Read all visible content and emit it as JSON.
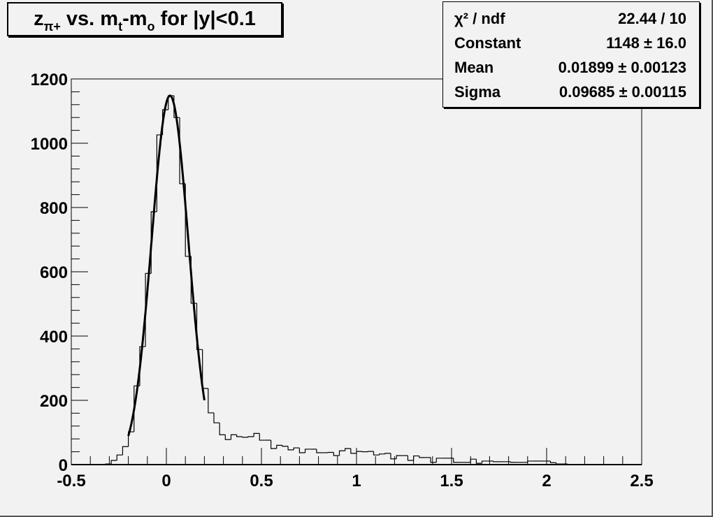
{
  "title": {
    "base1": "z",
    "sub1": "π+",
    "base2": " vs. m",
    "sub2": "t",
    "base3": "-m",
    "sub3": "o",
    "base4": " for |y|<0.1"
  },
  "stats": {
    "rows": [
      {
        "label": "χ² / ndf",
        "value": "22.44 / 10"
      },
      {
        "label": "Constant",
        "value": "1148 ± 16.0"
      },
      {
        "label": "Mean",
        "value": "0.01899 ± 0.00123"
      },
      {
        "label": "Sigma",
        "value": "0.09685 ± 0.00115"
      }
    ]
  },
  "chart_data": {
    "type": "bar",
    "subtype": "histogram-with-gaussian-fit",
    "xlim": [
      -0.5,
      2.5
    ],
    "ylim": [
      0,
      1200
    ],
    "bin_width": 0.03,
    "x_ticks": [
      "-0.5",
      "0",
      "0.5",
      "1",
      "1.5",
      "2",
      "2.5"
    ],
    "y_ticks": [
      "0",
      "200",
      "400",
      "600",
      "800",
      "1000",
      "1200"
    ],
    "grid": false,
    "legend": "none",
    "values": [
      0,
      0,
      0,
      0,
      0,
      0,
      2,
      13,
      30,
      56,
      102,
      245,
      367,
      595,
      787,
      1026,
      1104,
      1148,
      1080,
      874,
      648,
      502,
      358,
      237,
      161,
      130,
      93,
      78,
      93,
      87,
      85,
      87,
      97,
      76,
      76,
      50,
      60,
      57,
      46,
      52,
      37,
      48,
      48,
      37,
      37,
      38,
      28,
      43,
      50,
      35,
      41,
      40,
      41,
      30,
      33,
      35,
      18,
      28,
      28,
      13,
      27,
      22,
      22,
      7,
      20,
      20,
      20,
      7,
      7,
      7,
      17,
      4,
      11,
      11,
      9,
      9,
      9,
      7,
      7,
      7,
      11,
      11,
      11,
      11,
      6,
      2,
      2,
      0,
      0,
      0,
      0,
      0,
      0,
      0,
      0,
      0,
      0,
      0,
      0,
      0
    ],
    "fit": {
      "function": "gaus",
      "constant": 1148,
      "mean": 0.01899,
      "sigma": 0.09685,
      "range": [
        -0.2,
        0.2
      ]
    }
  }
}
